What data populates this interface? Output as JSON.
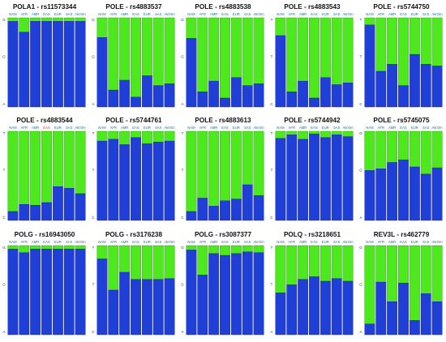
{
  "chart_data": [
    {
      "type": "bar",
      "stacked": true,
      "title": "POLA1 - rs11573344",
      "categories": [
        "NAM",
        "AFR",
        "AMR",
        "EAS",
        "EUR",
        "SAS",
        "AkrOm"
      ],
      "y_tick_labels": [
        "G",
        "A"
      ],
      "series": [
        {
          "name": "A",
          "values": [
            0.96,
            0.84,
            0.96,
            0.96,
            0.96,
            0.96,
            0.96
          ]
        },
        {
          "name": "G",
          "values": [
            0.04,
            0.16,
            0.04,
            0.04,
            0.04,
            0.04,
            0.04
          ]
        }
      ],
      "ylim": [
        0,
        1
      ]
    },
    {
      "type": "bar",
      "stacked": true,
      "title": "POLE - rs4883537",
      "categories": [
        "NAM",
        "AFR",
        "AMR",
        "EAS",
        "EUR",
        "SAS",
        "AkrOm"
      ],
      "y_tick_labels": [
        "G",
        "A"
      ],
      "series": [
        {
          "name": "A",
          "values": [
            0.78,
            0.19,
            0.3,
            0.11,
            0.35,
            0.24,
            0.26
          ]
        },
        {
          "name": "G",
          "values": [
            0.22,
            0.81,
            0.7,
            0.89,
            0.65,
            0.76,
            0.74
          ]
        }
      ],
      "ylim": [
        0,
        1
      ]
    },
    {
      "type": "bar",
      "stacked": true,
      "title": "POLE - rs4883538",
      "categories": [
        "NAM",
        "AFR",
        "AMR",
        "EAS",
        "EUR",
        "SAS",
        "AkrOm"
      ],
      "y_tick_labels": [
        "G",
        "A"
      ],
      "series": [
        {
          "name": "A",
          "values": [
            0.77,
            0.17,
            0.29,
            0.1,
            0.33,
            0.24,
            0.26
          ]
        },
        {
          "name": "G",
          "values": [
            0.23,
            0.83,
            0.71,
            0.9,
            0.67,
            0.76,
            0.74
          ]
        }
      ],
      "ylim": [
        0,
        1
      ]
    },
    {
      "type": "bar",
      "stacked": true,
      "title": "POLE - rs4883543",
      "categories": [
        "NAM",
        "AFR",
        "AMR",
        "EAS",
        "EUR",
        "SAS",
        "AkrOm"
      ],
      "y_tick_labels": [
        "T",
        "C"
      ],
      "series": [
        {
          "name": "C",
          "values": [
            0.8,
            0.17,
            0.29,
            0.1,
            0.33,
            0.25,
            0.27
          ]
        },
        {
          "name": "T",
          "values": [
            0.2,
            0.83,
            0.71,
            0.9,
            0.67,
            0.75,
            0.73
          ]
        }
      ],
      "ylim": [
        0,
        1
      ]
    },
    {
      "type": "bar",
      "stacked": true,
      "title": "POLE - rs5744750",
      "categories": [
        "NAM",
        "AFR",
        "AMR",
        "EAS",
        "EUR",
        "SAS",
        "AkrOm"
      ],
      "y_tick_labels": [
        "T",
        "C"
      ],
      "series": [
        {
          "name": "C",
          "values": [
            0.92,
            0.4,
            0.48,
            0.24,
            0.59,
            0.48,
            0.46
          ]
        },
        {
          "name": "T",
          "values": [
            0.08,
            0.6,
            0.52,
            0.76,
            0.41,
            0.52,
            0.54
          ]
        }
      ],
      "ylim": [
        0,
        1
      ]
    },
    {
      "type": "bar",
      "stacked": true,
      "title": "POLE - rs4883544",
      "categories": [
        "NAM",
        "AFR",
        "AMR",
        "EAS",
        "EUR",
        "SAS",
        "AkrOm"
      ],
      "y_tick_labels": [
        "T",
        "C"
      ],
      "series": [
        {
          "name": "C",
          "values": [
            0.1,
            0.18,
            0.17,
            0.2,
            0.38,
            0.36,
            0.3
          ]
        },
        {
          "name": "T",
          "values": [
            0.9,
            0.82,
            0.83,
            0.8,
            0.62,
            0.64,
            0.7
          ]
        }
      ],
      "ylim": [
        0,
        1
      ]
    },
    {
      "type": "bar",
      "stacked": true,
      "title": "POLE - rs5744761",
      "categories": [
        "NAM",
        "AFR",
        "AMR",
        "EAS",
        "EUR",
        "SAS",
        "AkrOm"
      ],
      "y_tick_labels": [
        "T",
        "C"
      ],
      "series": [
        {
          "name": "C",
          "values": [
            0.89,
            0.91,
            0.85,
            0.93,
            0.86,
            0.88,
            0.89
          ]
        },
        {
          "name": "T",
          "values": [
            0.11,
            0.09,
            0.15,
            0.07,
            0.14,
            0.12,
            0.11
          ]
        }
      ],
      "ylim": [
        0,
        1
      ]
    },
    {
      "type": "bar",
      "stacked": true,
      "title": "POLE - rs4883613",
      "categories": [
        "NAM",
        "AFR",
        "AMR",
        "EAS",
        "EUR",
        "SAS",
        "AkrOm"
      ],
      "y_tick_labels": [
        "T",
        "C"
      ],
      "series": [
        {
          "name": "C",
          "values": [
            0.1,
            0.25,
            0.16,
            0.22,
            0.24,
            0.4,
            0.28
          ]
        },
        {
          "name": "T",
          "values": [
            0.9,
            0.75,
            0.84,
            0.78,
            0.76,
            0.6,
            0.72
          ]
        }
      ],
      "ylim": [
        0,
        1
      ]
    },
    {
      "type": "bar",
      "stacked": true,
      "title": "POLE - rs5744942",
      "categories": [
        "NAM",
        "AFR",
        "AMR",
        "EAS",
        "EUR",
        "SAS",
        "AkrOm"
      ],
      "y_tick_labels": [
        "T",
        "C"
      ],
      "series": [
        {
          "name": "C",
          "values": [
            0.92,
            0.96,
            0.91,
            0.97,
            0.93,
            0.96,
            0.94
          ]
        },
        {
          "name": "T",
          "values": [
            0.08,
            0.04,
            0.09,
            0.03,
            0.07,
            0.04,
            0.06
          ]
        }
      ],
      "ylim": [
        0,
        1
      ]
    },
    {
      "type": "bar",
      "stacked": true,
      "title": "POLE - rs5745075",
      "categories": [
        "NAM",
        "AFR",
        "AMR",
        "EAS",
        "EUR",
        "SAS",
        "AkrOm"
      ],
      "y_tick_labels": [
        "G",
        "A"
      ],
      "series": [
        {
          "name": "A",
          "values": [
            0.56,
            0.58,
            0.65,
            0.68,
            0.6,
            0.52,
            0.59
          ]
        },
        {
          "name": "G",
          "values": [
            0.44,
            0.42,
            0.35,
            0.32,
            0.4,
            0.48,
            0.41
          ]
        }
      ],
      "ylim": [
        0,
        1
      ]
    },
    {
      "type": "bar",
      "stacked": true,
      "title": "POLG - rs16943050",
      "categories": [
        "NAM",
        "AFR",
        "AMR",
        "EAS",
        "EUR",
        "SAS",
        "AkrOm"
      ],
      "y_tick_labels": [
        "G",
        "A"
      ],
      "series": [
        {
          "name": "A",
          "values": [
            0.96,
            0.92,
            0.96,
            0.96,
            0.96,
            0.96,
            0.96
          ]
        },
        {
          "name": "G",
          "values": [
            0.04,
            0.08,
            0.04,
            0.04,
            0.04,
            0.04,
            0.04
          ]
        }
      ],
      "ylim": [
        0,
        1
      ]
    },
    {
      "type": "bar",
      "stacked": true,
      "title": "POLG - rs3176238",
      "categories": [
        "NAM",
        "AFR",
        "AMR",
        "EAS",
        "EUR",
        "SAS",
        "AkrOm"
      ],
      "y_tick_labels": [
        "T",
        "C"
      ],
      "series": [
        {
          "name": "C",
          "values": [
            0.85,
            0.5,
            0.7,
            0.62,
            0.62,
            0.62,
            0.63
          ]
        },
        {
          "name": "T",
          "values": [
            0.15,
            0.5,
            0.3,
            0.38,
            0.38,
            0.38,
            0.37
          ]
        }
      ],
      "ylim": [
        0,
        1
      ]
    },
    {
      "type": "bar",
      "stacked": true,
      "title": "POLG - rs3087377",
      "categories": [
        "NAM",
        "AFR",
        "AMR",
        "EAS",
        "EUR",
        "SAS",
        "AkrOm"
      ],
      "y_tick_labels": [
        "G",
        "A"
      ],
      "series": [
        {
          "name": "A",
          "values": [
            0.95,
            0.67,
            0.91,
            0.89,
            0.91,
            0.93,
            0.92
          ]
        },
        {
          "name": "G",
          "values": [
            0.05,
            0.33,
            0.09,
            0.11,
            0.09,
            0.07,
            0.08
          ]
        }
      ],
      "ylim": [
        0,
        1
      ]
    },
    {
      "type": "bar",
      "stacked": true,
      "title": "POLQ - rs3218651",
      "categories": [
        "NAM",
        "AFR",
        "AMR",
        "EAS",
        "EUR",
        "SAS",
        "AkrOm"
      ],
      "y_tick_labels": [
        "T",
        "A"
      ],
      "series": [
        {
          "name": "A",
          "values": [
            0.47,
            0.56,
            0.62,
            0.65,
            0.6,
            0.63,
            0.6
          ]
        },
        {
          "name": "T",
          "values": [
            0.53,
            0.44,
            0.38,
            0.35,
            0.4,
            0.37,
            0.4
          ]
        }
      ],
      "ylim": [
        0,
        1
      ]
    },
    {
      "type": "bar",
      "stacked": true,
      "title": "REV3L - rs462779",
      "categories": [
        "NAM",
        "AFR",
        "AMR",
        "EAS",
        "EUR",
        "SAS",
        "AkrOm"
      ],
      "y_tick_labels": [
        "G",
        "A"
      ],
      "series": [
        {
          "name": "A",
          "values": [
            0.12,
            0.59,
            0.37,
            0.58,
            0.16,
            0.46,
            0.37
          ]
        },
        {
          "name": "G",
          "values": [
            0.88,
            0.41,
            0.63,
            0.42,
            0.84,
            0.54,
            0.63
          ]
        }
      ],
      "ylim": [
        0,
        1
      ]
    }
  ],
  "colors": {
    "lower": "#1f3fd6",
    "upper": "#4ee81f",
    "category_label": "#1a6e8c",
    "highlight_category": "#e03030",
    "background": "#ffffff"
  }
}
